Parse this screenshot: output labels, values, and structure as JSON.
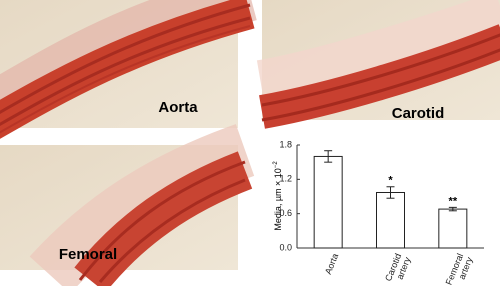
{
  "panels": [
    {
      "label": "Aorta"
    },
    {
      "label": "Carotid"
    },
    {
      "label": "Femoral"
    }
  ],
  "chart_data": {
    "type": "bar",
    "y_label": "Media, µm × 10",
    "y_label_superscript": "−2",
    "categories": [
      "Aorta",
      "Carotid artery",
      "Femoral artery"
    ],
    "values": [
      1.6,
      0.97,
      0.68
    ],
    "errors": [
      0.1,
      0.1,
      0.03
    ],
    "significance": [
      null,
      "*",
      "**"
    ],
    "color": "#ffffff",
    "ylim": [
      0,
      1.8
    ],
    "yticks": [
      {
        "value": 0,
        "label": "0.0"
      },
      {
        "value": 0.6,
        "label": "0.6"
      },
      {
        "value": 1.2,
        "label": "1.2"
      },
      {
        "value": 1.8,
        "label": "1.8"
      }
    ]
  }
}
